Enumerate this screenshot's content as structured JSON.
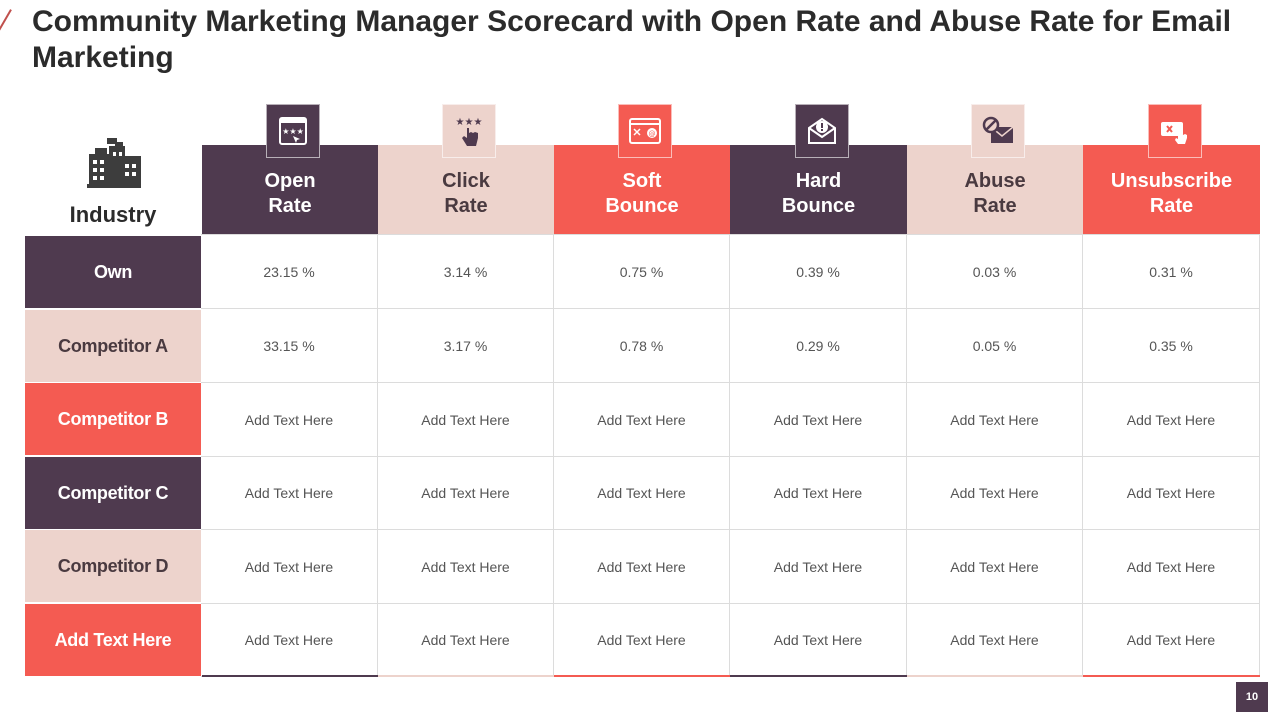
{
  "title": "Community Marketing Manager Scorecard with Open Rate and Abuse Rate for Email Marketing",
  "industry_label": "Industry",
  "columns": [
    {
      "line1": "Open",
      "line2": "Rate",
      "icon": "star-rating-screen-icon"
    },
    {
      "line1": "Click",
      "line2": "Rate",
      "icon": "stars-click-hand-icon"
    },
    {
      "line1": "Soft",
      "line2": "Bounce",
      "icon": "email-window-icon"
    },
    {
      "line1": "Hard",
      "line2": "Bounce",
      "icon": "envelope-alert-icon"
    },
    {
      "line1": "Abuse",
      "line2": "Rate",
      "icon": "blocked-envelope-icon"
    },
    {
      "line1": "Unsubscribe",
      "line2": "Rate",
      "icon": "unsubscribe-click-icon"
    }
  ],
  "rows": [
    {
      "label": "Own",
      "values": [
        "23.15 %",
        "3.14 %",
        "0.75 %",
        "0.39 %",
        "0.03 %",
        "0.31 %"
      ]
    },
    {
      "label": "Competitor A",
      "values": [
        "33.15 %",
        "3.17 %",
        "0.78 %",
        "0.29 %",
        "0.05 %",
        "0.35 %"
      ]
    },
    {
      "label": "Competitor B",
      "values": [
        "Add Text Here",
        "Add Text Here",
        "Add Text Here",
        "Add Text Here",
        "Add Text Here",
        "Add Text Here"
      ]
    },
    {
      "label": "Competitor C",
      "values": [
        "Add Text Here",
        "Add Text Here",
        "Add Text Here",
        "Add Text Here",
        "Add Text Here",
        "Add Text Here"
      ]
    },
    {
      "label": "Competitor D",
      "values": [
        "Add Text Here",
        "Add Text Here",
        "Add Text Here",
        "Add Text Here",
        "Add Text Here",
        "Add Text Here"
      ]
    },
    {
      "label": "Add Text Here",
      "values": [
        "Add Text Here",
        "Add Text Here",
        "Add Text Here",
        "Add Text Here",
        "Add Text Here",
        "Add Text Here"
      ]
    }
  ],
  "page_number": "10",
  "colors": {
    "dark": "#4f3a4f",
    "light": "#edd3cc",
    "coral": "#f45b52"
  }
}
